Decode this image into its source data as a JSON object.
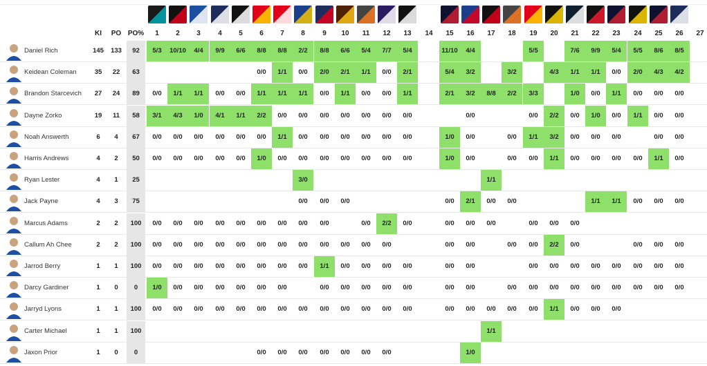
{
  "columns": {
    "ki": "KI",
    "po": "PO",
    "pct": "PO%",
    "rounds": [
      "1",
      "2",
      "3",
      "4",
      "5",
      "6",
      "7",
      "8",
      "9",
      "10",
      "11",
      "12",
      "13",
      "14",
      "15",
      "16",
      "17",
      "18",
      "19",
      "20",
      "21",
      "22",
      "23",
      "24",
      "25",
      "26",
      "27"
    ]
  },
  "opponent_logos": [
    {
      "round": "1",
      "icon": "port-adelaide-logo-icon",
      "c1": "#1a1a1a",
      "c2": "#00a9b5"
    },
    {
      "round": "2",
      "icon": "essendon-logo-icon",
      "c1": "#111111",
      "c2": "#e2001a"
    },
    {
      "round": "3",
      "icon": "north-melbourne-logo-icon",
      "c1": "#1a4fa0",
      "c2": "#ffffff"
    },
    {
      "round": "4",
      "icon": "geelong-logo-icon",
      "c1": "#1c2c5b",
      "c2": "#ffffff"
    },
    {
      "round": "5",
      "icon": "collingwood-logo-icon",
      "c1": "#111111",
      "c2": "#ffffff"
    },
    {
      "round": "6",
      "icon": "gold-coast-logo-icon",
      "c1": "#e2001a",
      "c2": "#ffd200"
    },
    {
      "round": "7",
      "icon": "sydney-logo-icon",
      "c1": "#e2001a",
      "c2": "#ffffff"
    },
    {
      "round": "8",
      "icon": "west-coast-logo-icon",
      "c1": "#1a3e8c",
      "c2": "#f5c400"
    },
    {
      "round": "9",
      "icon": "adelaide-logo-icon",
      "c1": "#1c2c5b",
      "c2": "#e2001a"
    },
    {
      "round": "10",
      "icon": "hawthorn-logo-icon",
      "c1": "#4d2004",
      "c2": "#fbbf15"
    },
    {
      "round": "11",
      "icon": "gws-logo-icon",
      "c1": "#444444",
      "c2": "#f47920"
    },
    {
      "round": "12",
      "icon": "fremantle-logo-icon",
      "c1": "#2a1a5e",
      "c2": "#ffffff"
    },
    {
      "round": "13",
      "icon": "collingwood-logo-icon",
      "c1": "#111111",
      "c2": "#ffffff"
    },
    {
      "round": "15",
      "icon": "melbourne-logo-icon",
      "c1": "#0f1131",
      "c2": "#cc2031"
    },
    {
      "round": "16",
      "icon": "western-bulldogs-logo-icon",
      "c1": "#1a3e8c",
      "c2": "#e2001a"
    },
    {
      "round": "17",
      "icon": "essendon-logo-icon",
      "c1": "#111111",
      "c2": "#e2001a"
    },
    {
      "round": "18",
      "icon": "gws-logo-icon",
      "c1": "#444444",
      "c2": "#f47920"
    },
    {
      "round": "19",
      "icon": "gold-coast-logo-icon",
      "c1": "#e2001a",
      "c2": "#ffd200"
    },
    {
      "round": "20",
      "icon": "richmond-logo-icon",
      "c1": "#111111",
      "c2": "#ffd200"
    },
    {
      "round": "21",
      "icon": "carlton-logo-icon",
      "c1": "#0e1e2d",
      "c2": "#ffffff"
    },
    {
      "round": "22",
      "icon": "st-kilda-logo-icon",
      "c1": "#111111",
      "c2": "#ed1b2f"
    },
    {
      "round": "23",
      "icon": "melbourne-logo-icon",
      "c1": "#0f1131",
      "c2": "#cc2031"
    },
    {
      "round": "24",
      "icon": "richmond-logo-icon",
      "c1": "#111111",
      "c2": "#ffd200"
    },
    {
      "round": "25",
      "icon": "melbourne-logo-icon",
      "c1": "#0f1131",
      "c2": "#cc2031"
    },
    {
      "round": "26",
      "icon": "geelong-logo-icon",
      "c1": "#1c2c5b",
      "c2": "#ffffff"
    }
  ],
  "colors": {
    "highlight": "#8fe06a",
    "pct_bg": "#e6e6e6"
  },
  "players": [
    {
      "name": "Daniel Rich",
      "ki": "145",
      "po": "133",
      "pct": "92",
      "rounds": [
        "5/3",
        "10/10",
        "4/4",
        "9/9",
        "6/6",
        "8/8",
        "8/8",
        "2/2",
        "8/8",
        "6/6",
        "5/4",
        "7/7",
        "5/4",
        "",
        "11/10",
        "4/4",
        "",
        "",
        "5/5",
        "",
        "7/6",
        "9/9",
        "5/4",
        "5/5",
        "8/6",
        "8/5",
        ""
      ],
      "hi": [
        "1",
        "2",
        "3",
        "4",
        "5",
        "6",
        "7",
        "8",
        "9",
        "10",
        "11",
        "12",
        "13",
        "15",
        "16",
        "19",
        "21",
        "22",
        "23",
        "24",
        "25",
        "26"
      ]
    },
    {
      "name": "Keidean Coleman",
      "ki": "35",
      "po": "22",
      "pct": "63",
      "rounds": [
        "",
        "",
        "",
        "",
        "",
        "0/0",
        "1/1",
        "0/0",
        "2/0",
        "2/1",
        "1/1",
        "0/0",
        "2/1",
        "",
        "5/4",
        "3/2",
        "",
        "3/2",
        "",
        "4/3",
        "1/1",
        "1/1",
        "0/0",
        "2/0",
        "4/3",
        "4/2",
        ""
      ],
      "hi": [
        "7",
        "9",
        "10",
        "11",
        "13",
        "15",
        "16",
        "18",
        "20",
        "21",
        "22",
        "24",
        "25",
        "26"
      ]
    },
    {
      "name": "Brandon Starcevich",
      "ki": "27",
      "po": "24",
      "pct": "89",
      "rounds": [
        "0/0",
        "1/1",
        "1/1",
        "0/0",
        "0/0",
        "1/1",
        "1/1",
        "1/1",
        "0/0",
        "1/1",
        "0/0",
        "0/0",
        "1/1",
        "",
        "2/1",
        "3/2",
        "8/8",
        "2/2",
        "3/3",
        "",
        "1/0",
        "0/0",
        "1/1",
        "0/0",
        "0/0",
        "0/0",
        ""
      ],
      "hi": [
        "2",
        "3",
        "6",
        "7",
        "8",
        "10",
        "13",
        "15",
        "16",
        "17",
        "18",
        "19",
        "21",
        "23"
      ]
    },
    {
      "name": "Dayne Zorko",
      "ki": "19",
      "po": "11",
      "pct": "58",
      "rounds": [
        "3/1",
        "4/3",
        "1/0",
        "4/1",
        "1/1",
        "2/2",
        "0/0",
        "0/0",
        "0/0",
        "0/0",
        "0/0",
        "0/0",
        "0/0",
        "",
        "",
        "0/0",
        "",
        "",
        "0/0",
        "2/2",
        "0/0",
        "1/0",
        "0/0",
        "1/1",
        "0/0",
        "0/0",
        ""
      ],
      "hi": [
        "1",
        "2",
        "3",
        "4",
        "5",
        "6",
        "20",
        "22",
        "24"
      ]
    },
    {
      "name": "Noah Answerth",
      "ki": "6",
      "po": "4",
      "pct": "67",
      "rounds": [
        "0/0",
        "0/0",
        "0/0",
        "0/0",
        "0/0",
        "0/0",
        "1/1",
        "0/0",
        "0/0",
        "0/0",
        "0/0",
        "0/0",
        "0/0",
        "",
        "1/0",
        "0/0",
        "",
        "0/0",
        "1/1",
        "3/2",
        "0/0",
        "0/0",
        "0/0",
        "",
        "0/0",
        "0/0",
        ""
      ],
      "hi": [
        "7",
        "15",
        "19",
        "20"
      ]
    },
    {
      "name": "Harris Andrews",
      "ki": "4",
      "po": "2",
      "pct": "50",
      "rounds": [
        "0/0",
        "0/0",
        "0/0",
        "0/0",
        "0/0",
        "1/0",
        "0/0",
        "0/0",
        "0/0",
        "0/0",
        "0/0",
        "0/0",
        "0/0",
        "",
        "1/0",
        "0/0",
        "",
        "0/0",
        "0/0",
        "1/1",
        "0/0",
        "0/0",
        "0/0",
        "0/0",
        "1/1",
        "0/0",
        ""
      ],
      "hi": [
        "6",
        "15",
        "20",
        "25"
      ]
    },
    {
      "name": "Ryan Lester",
      "ki": "4",
      "po": "1",
      "pct": "25",
      "rounds": [
        "",
        "",
        "",
        "",
        "",
        "",
        "",
        "3/0",
        "",
        "",
        "",
        "",
        "",
        "",
        "",
        "",
        "1/1",
        "",
        "",
        "",
        "",
        "",
        "",
        "",
        "",
        "",
        ""
      ],
      "hi": [
        "8",
        "17"
      ]
    },
    {
      "name": "Jack Payne",
      "ki": "4",
      "po": "3",
      "pct": "75",
      "rounds": [
        "",
        "",
        "",
        "",
        "",
        "",
        "",
        "0/0",
        "0/0",
        "0/0",
        "",
        "",
        "",
        "",
        "0/0",
        "2/1",
        "0/0",
        "0/0",
        "",
        "",
        "",
        "1/1",
        "1/1",
        "0/0",
        "0/0",
        "0/0",
        ""
      ],
      "hi": [
        "16",
        "22",
        "23"
      ]
    },
    {
      "name": "Marcus Adams",
      "ki": "2",
      "po": "2",
      "pct": "100",
      "rounds": [
        "0/0",
        "0/0",
        "0/0",
        "0/0",
        "0/0",
        "0/0",
        "0/0",
        "0/0",
        "0/0",
        "",
        "0/0",
        "2/2",
        "0/0",
        "",
        "0/0",
        "0/0",
        "0/0",
        "",
        "0/0",
        "0/0",
        "0/0",
        "",
        "",
        "",
        "",
        "",
        ""
      ],
      "hi": [
        "12"
      ]
    },
    {
      "name": "Callum Ah Chee",
      "ki": "2",
      "po": "2",
      "pct": "100",
      "rounds": [
        "0/0",
        "0/0",
        "0/0",
        "0/0",
        "0/0",
        "0/0",
        "0/0",
        "0/0",
        "0/0",
        "0/0",
        "0/0",
        "0/0",
        "",
        "",
        "0/0",
        "0/0",
        "",
        "0/0",
        "0/0",
        "2/2",
        "0/0",
        "",
        "",
        "0/0",
        "0/0",
        "0/0",
        ""
      ],
      "hi": [
        "20"
      ]
    },
    {
      "name": "Jarrod Berry",
      "ki": "1",
      "po": "1",
      "pct": "100",
      "rounds": [
        "0/0",
        "0/0",
        "0/0",
        "0/0",
        "0/0",
        "0/0",
        "0/0",
        "0/0",
        "1/1",
        "0/0",
        "0/0",
        "0/0",
        "0/0",
        "",
        "0/0",
        "0/0",
        "",
        "",
        "0/0",
        "0/0",
        "0/0",
        "0/0",
        "0/0",
        "0/0",
        "0/0",
        "0/0",
        ""
      ],
      "hi": [
        "9"
      ]
    },
    {
      "name": "Darcy Gardiner",
      "ki": "1",
      "po": "0",
      "pct": "0",
      "rounds": [
        "1/0",
        "0/0",
        "0/0",
        "0/0",
        "0/0",
        "0/0",
        "0/0",
        "",
        "0/0",
        "0/0",
        "0/0",
        "0/0",
        "0/0",
        "",
        "0/0",
        "0/0",
        "",
        "0/0",
        "0/0",
        "0/0",
        "0/0",
        "0/0",
        "0/0",
        "0/0",
        "0/0",
        "0/0",
        ""
      ],
      "hi": [
        "1"
      ]
    },
    {
      "name": "Jarryd Lyons",
      "ki": "1",
      "po": "1",
      "pct": "100",
      "rounds": [
        "0/0",
        "0/0",
        "0/0",
        "0/0",
        "0/0",
        "0/0",
        "0/0",
        "0/0",
        "0/0",
        "0/0",
        "0/0",
        "0/0",
        "0/0",
        "",
        "0/0",
        "0/0",
        "0/0",
        "0/0",
        "0/0",
        "1/1",
        "0/0",
        "0/0",
        "0/0",
        "",
        "",
        "",
        ""
      ],
      "hi": [
        "20"
      ]
    },
    {
      "name": "Carter Michael",
      "ki": "1",
      "po": "1",
      "pct": "100",
      "rounds": [
        "",
        "",
        "",
        "",
        "",
        "",
        "",
        "",
        "",
        "",
        "",
        "",
        "",
        "",
        "",
        "",
        "1/1",
        "",
        "",
        "",
        "",
        "",
        "",
        "",
        "",
        "",
        ""
      ],
      "hi": [
        "17"
      ]
    },
    {
      "name": "Jaxon Prior",
      "ki": "1",
      "po": "0",
      "pct": "0",
      "rounds": [
        "",
        "",
        "",
        "",
        "",
        "0/0",
        "0/0",
        "0/0",
        "0/0",
        "0/0",
        "0/0",
        "0/0",
        "",
        "",
        "",
        "1/0",
        "",
        "",
        "",
        "",
        "",
        "",
        "",
        "",
        "",
        "",
        ""
      ],
      "hi": [
        "16"
      ]
    }
  ]
}
